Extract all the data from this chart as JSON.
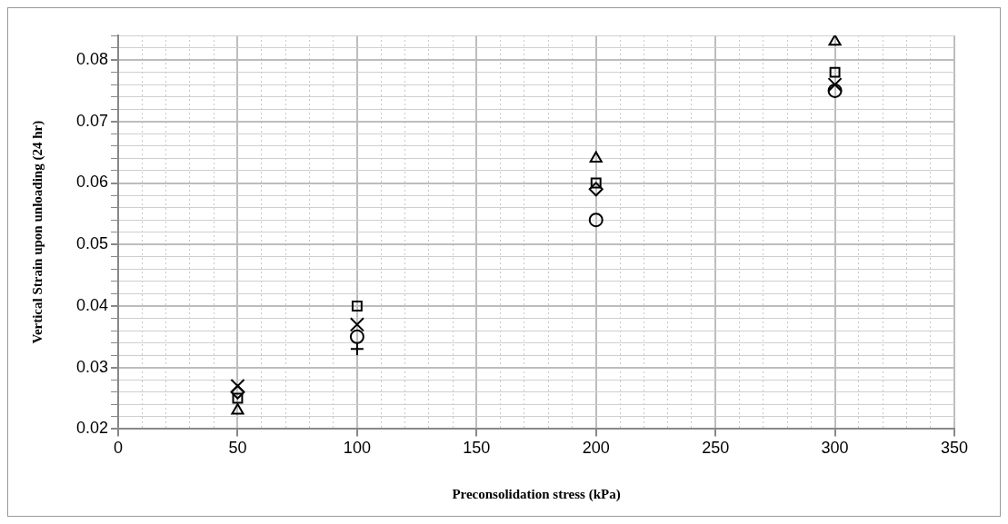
{
  "chart_data": {
    "type": "scatter",
    "xlabel": "Preconsolidation stress (kPa)",
    "ylabel": "Vertical Strain upon unloading (24 hr)",
    "x": [
      50,
      100,
      200,
      300
    ],
    "series": [
      {
        "marker": "triangle",
        "color": "#000000",
        "values": [
          0.023,
          null,
          0.064,
          0.083
        ]
      },
      {
        "marker": "square",
        "color": "#000000",
        "values": [
          0.025,
          0.04,
          0.06,
          0.078
        ]
      },
      {
        "marker": "x",
        "color": "#000000",
        "values": [
          0.027,
          0.037,
          null,
          0.076
        ]
      },
      {
        "marker": "diamond",
        "color": "#000000",
        "values": [
          0.026,
          null,
          0.059,
          null
        ]
      },
      {
        "marker": "circle",
        "color": "#000000",
        "values": [
          null,
          0.035,
          0.054,
          0.075
        ]
      },
      {
        "marker": "cross",
        "color": "#000000",
        "values": [
          null,
          0.033,
          null,
          null
        ]
      }
    ],
    "xlim": [
      0,
      350
    ],
    "xticks": [
      0,
      {
        "value": 10,
        "label": null
      },
      {
        "value": 20,
        "label": null
      },
      {
        "value": 30,
        "label": null
      },
      {
        "value": 40,
        "label": null
      },
      50,
      {
        "value": 60,
        "label": null
      },
      {
        "value": 70,
        "label": null
      },
      {
        "value": 80,
        "label": null
      },
      {
        "value": 90,
        "label": null
      },
      100,
      {
        "value": 110,
        "label": null
      },
      {
        "value": 120,
        "label": null
      },
      {
        "value": 130,
        "label": null
      },
      {
        "value": 140,
        "label": null
      },
      150,
      {
        "value": 160,
        "label": null
      },
      {
        "value": 170,
        "label": null
      },
      {
        "value": 180,
        "label": null
      },
      {
        "value": 190,
        "label": null
      },
      200,
      {
        "value": 210,
        "label": null
      },
      {
        "value": 220,
        "label": null
      },
      {
        "value": 230,
        "label": null
      },
      {
        "value": 240,
        "label": null
      },
      250,
      {
        "value": 260,
        "label": null
      },
      {
        "value": 270,
        "label": null
      },
      {
        "value": 280,
        "label": null
      },
      {
        "value": 290,
        "label": null
      },
      300,
      {
        "value": 310,
        "label": null
      },
      {
        "value": 320,
        "label": null
      },
      {
        "value": 330,
        "label": null
      },
      {
        "value": 340,
        "label": null
      },
      350
    ],
    "ylim": [
      0.02,
      0.084
    ],
    "yticks": [
      0.02,
      {
        "value": 0.022,
        "label": null
      },
      {
        "value": 0.024,
        "label": null
      },
      {
        "value": 0.026,
        "label": null
      },
      {
        "value": 0.028,
        "label": null
      },
      0.03,
      {
        "value": 0.032,
        "label": null
      },
      {
        "value": 0.034,
        "label": null
      },
      {
        "value": 0.036,
        "label": null
      },
      {
        "value": 0.038,
        "label": null
      },
      0.04,
      {
        "value": 0.042,
        "label": null
      },
      {
        "value": 0.044,
        "label": null
      },
      {
        "value": 0.046,
        "label": null
      },
      {
        "value": 0.048,
        "label": null
      },
      0.05,
      {
        "value": 0.052,
        "label": null
      },
      {
        "value": 0.054,
        "label": null
      },
      {
        "value": 0.056,
        "label": null
      },
      {
        "value": 0.058,
        "label": null
      },
      0.06,
      {
        "value": 0.062,
        "label": null
      },
      {
        "value": 0.064,
        "label": null
      },
      {
        "value": 0.066,
        "label": null
      },
      {
        "value": 0.068,
        "label": null
      },
      0.07,
      {
        "value": 0.072,
        "label": null
      },
      {
        "value": 0.074,
        "label": null
      },
      {
        "value": 0.076,
        "label": null
      },
      {
        "value": 0.078,
        "label": null
      },
      0.08,
      {
        "value": 0.082,
        "label": null
      },
      {
        "value": 0.084,
        "label": null
      }
    ],
    "grid": true,
    "legend": false
  }
}
